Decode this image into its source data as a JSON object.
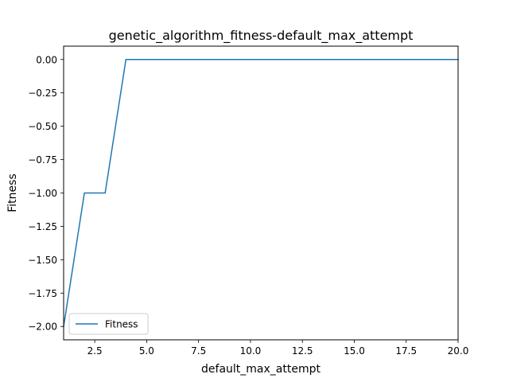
{
  "chart_data": {
    "type": "line",
    "title": "genetic_algorithm_fitness-default_max_attempt",
    "xlabel": "default_max_attempt",
    "ylabel": "Fitness",
    "xlim": [
      1,
      20
    ],
    "ylim": [
      -2.1,
      0.1
    ],
    "xticks": [
      2.5,
      5.0,
      7.5,
      10.0,
      12.5,
      15.0,
      17.5,
      20.0
    ],
    "xtick_labels": [
      "2.5",
      "5.0",
      "7.5",
      "10.0",
      "12.5",
      "15.0",
      "17.5",
      "20.0"
    ],
    "yticks": [
      0.0,
      -0.25,
      -0.5,
      -0.75,
      -1.0,
      -1.25,
      -1.5,
      -1.75,
      -2.0
    ],
    "ytick_labels": [
      "0.00",
      "−0.25",
      "−0.50",
      "−0.75",
      "−1.00",
      "−1.25",
      "−1.50",
      "−1.75",
      "−2.00"
    ],
    "grid": false,
    "legend_position": "lower-left",
    "series": [
      {
        "name": "Fitness",
        "color": "#1f77b4",
        "x": [
          1,
          2,
          3,
          4,
          5,
          6,
          7,
          8,
          9,
          10,
          11,
          12,
          13,
          14,
          15,
          16,
          17,
          18,
          19,
          20
        ],
        "y": [
          -2,
          -1,
          -1,
          0,
          0,
          0,
          0,
          0,
          0,
          0,
          0,
          0,
          0,
          0,
          0,
          0,
          0,
          0,
          0,
          0
        ]
      }
    ]
  }
}
